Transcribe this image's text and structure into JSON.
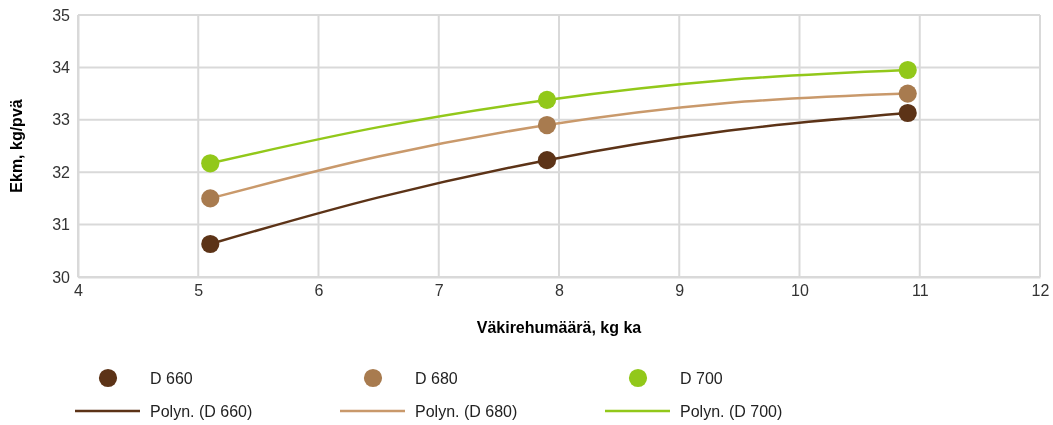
{
  "chart_data": {
    "type": "scatter",
    "xlabel": "Väkirehumäärä, kg ka",
    "ylabel": "Ekm, kg/pvä",
    "xlim": [
      4,
      12
    ],
    "ylim": [
      30,
      35
    ],
    "xticks": [
      4,
      5,
      6,
      7,
      8,
      9,
      10,
      11,
      12
    ],
    "yticks": [
      30,
      31,
      32,
      33,
      34,
      35
    ],
    "grid": true,
    "legend": "bottom",
    "series": [
      {
        "name": "D 660",
        "color": "#5c3317",
        "marker": "circle",
        "x": [
          5.1,
          7.9,
          10.9
        ],
        "values": [
          30.63,
          32.23,
          33.13
        ]
      },
      {
        "name": "D 680",
        "color": "#a87b4f",
        "marker": "circle",
        "x": [
          5.1,
          7.9,
          10.9
        ],
        "values": [
          31.5,
          32.9,
          33.5
        ]
      },
      {
        "name": "D 700",
        "color": "#92c81a",
        "marker": "circle",
        "x": [
          5.1,
          7.9,
          10.9
        ],
        "values": [
          32.17,
          33.38,
          33.95
        ]
      },
      {
        "name": "Polyn. (D 660)",
        "type": "line",
        "color": "#5c3317",
        "marker": "none",
        "line_style": "solid",
        "x": [
          5.1,
          6.5,
          7.9,
          9.4,
          10.9
        ],
        "values": [
          30.63,
          31.52,
          32.23,
          32.79,
          33.13
        ]
      },
      {
        "name": "Polyn. (D 680)",
        "type": "line",
        "color": "#c9996b",
        "marker": "none",
        "line_style": "solid",
        "x": [
          5.1,
          6.5,
          7.9,
          9.4,
          10.9
        ],
        "values": [
          31.5,
          32.3,
          32.9,
          33.32,
          33.5
        ]
      },
      {
        "name": "Polyn. (D 700)",
        "type": "line",
        "color": "#92c81a",
        "marker": "none",
        "line_style": "solid",
        "x": [
          5.1,
          6.5,
          7.9,
          9.4,
          10.9
        ],
        "values": [
          32.17,
          32.86,
          33.38,
          33.76,
          33.95
        ]
      }
    ]
  }
}
